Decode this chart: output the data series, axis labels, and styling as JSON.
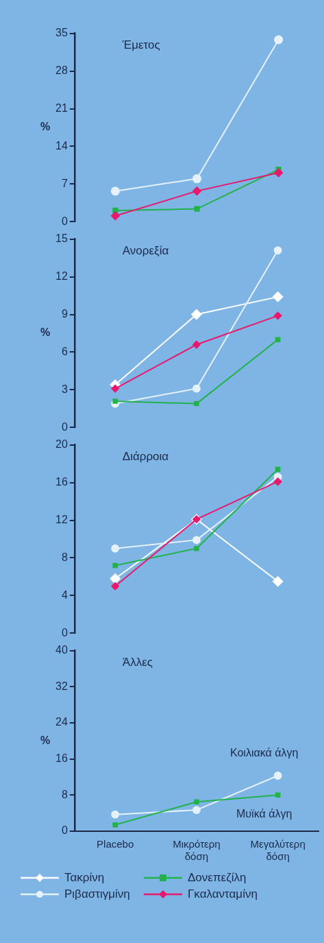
{
  "chart_data": [
    {
      "type": "line",
      "title": "Έμετος",
      "ylabel": "%",
      "categories": [
        null,
        null,
        null
      ],
      "ylim": [
        0,
        35
      ],
      "yticks": [
        0,
        7,
        14,
        21,
        28,
        35
      ],
      "tick_labels": "y",
      "series": [
        {
          "color": "#e6f2fa",
          "marker": "circle",
          "values": [
            5.7,
            8.0,
            33.8
          ]
        },
        {
          "color": "#22b24c",
          "marker": "square",
          "values": [
            2.1,
            2.4,
            9.7
          ]
        },
        {
          "color": "#e8186c",
          "marker": "diamond",
          "values": [
            1.1,
            5.7,
            9.1
          ]
        }
      ]
    },
    {
      "type": "line",
      "title": "Ανορεξία",
      "ylabel": "%",
      "categories": [
        null,
        null,
        null
      ],
      "ylim": [
        0,
        15
      ],
      "yticks": [
        0,
        3,
        6,
        9,
        12,
        15
      ],
      "tick_labels": "y",
      "series": [
        {
          "color": "#ffffff",
          "marker": "diamond",
          "values": [
            3.4,
            9.0,
            10.4
          ]
        },
        {
          "color": "#e6f2fa",
          "marker": "circle",
          "values": [
            1.9,
            3.1,
            14.1
          ]
        },
        {
          "color": "#22b24c",
          "marker": "square",
          "values": [
            2.1,
            1.9,
            7.0
          ]
        },
        {
          "color": "#e8186c",
          "marker": "diamond",
          "values": [
            3.1,
            6.6,
            8.9
          ]
        }
      ]
    },
    {
      "type": "line",
      "title": "Διάρροια",
      "categories": [
        null,
        null,
        null
      ],
      "ylim": [
        0,
        20
      ],
      "yticks": [
        0,
        4,
        8,
        12,
        16,
        20
      ],
      "tick_labels": "y",
      "series": [
        {
          "color": "#ffffff",
          "marker": "diamond",
          "values": [
            5.8,
            12.1,
            5.5
          ]
        },
        {
          "color": "#e6f2fa",
          "marker": "circle",
          "values": [
            9.0,
            9.9,
            16.6
          ]
        },
        {
          "color": "#22b24c",
          "marker": "square",
          "values": [
            7.2,
            9.0,
            17.4
          ]
        },
        {
          "color": "#e8186c",
          "marker": "diamond",
          "values": [
            5.0,
            12.1,
            16.1
          ]
        }
      ]
    },
    {
      "type": "line",
      "title": "Άλλες",
      "ylabel": "%",
      "categories": [
        "Placebo",
        "Μικρότερη δόση",
        "Μεγαλύτερη δόση"
      ],
      "ylim": [
        0,
        40
      ],
      "yticks": [
        0,
        8,
        16,
        24,
        32,
        40
      ],
      "legend": "bottom",
      "annotations": [
        "Κοιλιακά άλγη",
        "Μυϊκά άλγη"
      ],
      "series": [
        {
          "name": "Τακρίνη",
          "color": "#ffffff",
          "marker": "diamond",
          "values": [
            null,
            null,
            null
          ]
        },
        {
          "name": "Ριβαστιγμίνη",
          "color": "#e6f2fa",
          "marker": "circle",
          "values": [
            3.7,
            4.7,
            12.3
          ]
        },
        {
          "name": "Δονεπεζίλη",
          "color": "#22b24c",
          "marker": "square",
          "values": [
            1.4,
            6.5,
            8.0
          ]
        },
        {
          "name": "Γκαλανταμίνη",
          "color": "#e8186c",
          "marker": "diamond",
          "values": [
            null,
            null,
            null
          ]
        }
      ]
    }
  ]
}
